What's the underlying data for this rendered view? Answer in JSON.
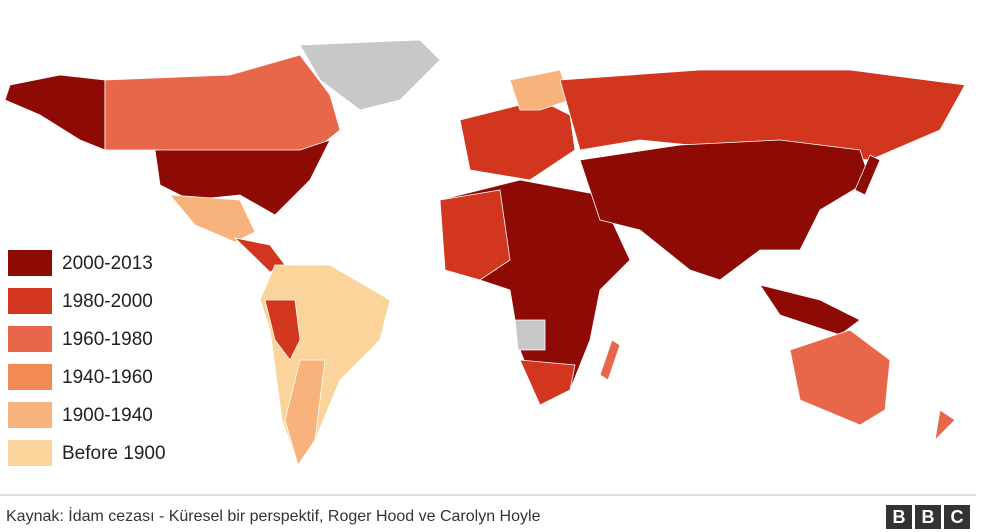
{
  "legend": {
    "items": [
      {
        "label": "2000-2013",
        "color": "#8e0a05"
      },
      {
        "label": "1980-2000",
        "color": "#d2361e"
      },
      {
        "label": "1960-1980",
        "color": "#e8674a"
      },
      {
        "label": "1940-1960",
        "color": "#f28a55"
      },
      {
        "label": "1900-1940",
        "color": "#f8b27c"
      },
      {
        "label": "Before 1900",
        "color": "#fbd49c"
      }
    ]
  },
  "no_data_color": "#c8c8c8",
  "footer": {
    "source": "Kaynak: İdam cezası - Küresel bir perspektif, Roger Hood ve Carolyn Hoyle",
    "logo": [
      "B",
      "B",
      "C"
    ]
  }
}
